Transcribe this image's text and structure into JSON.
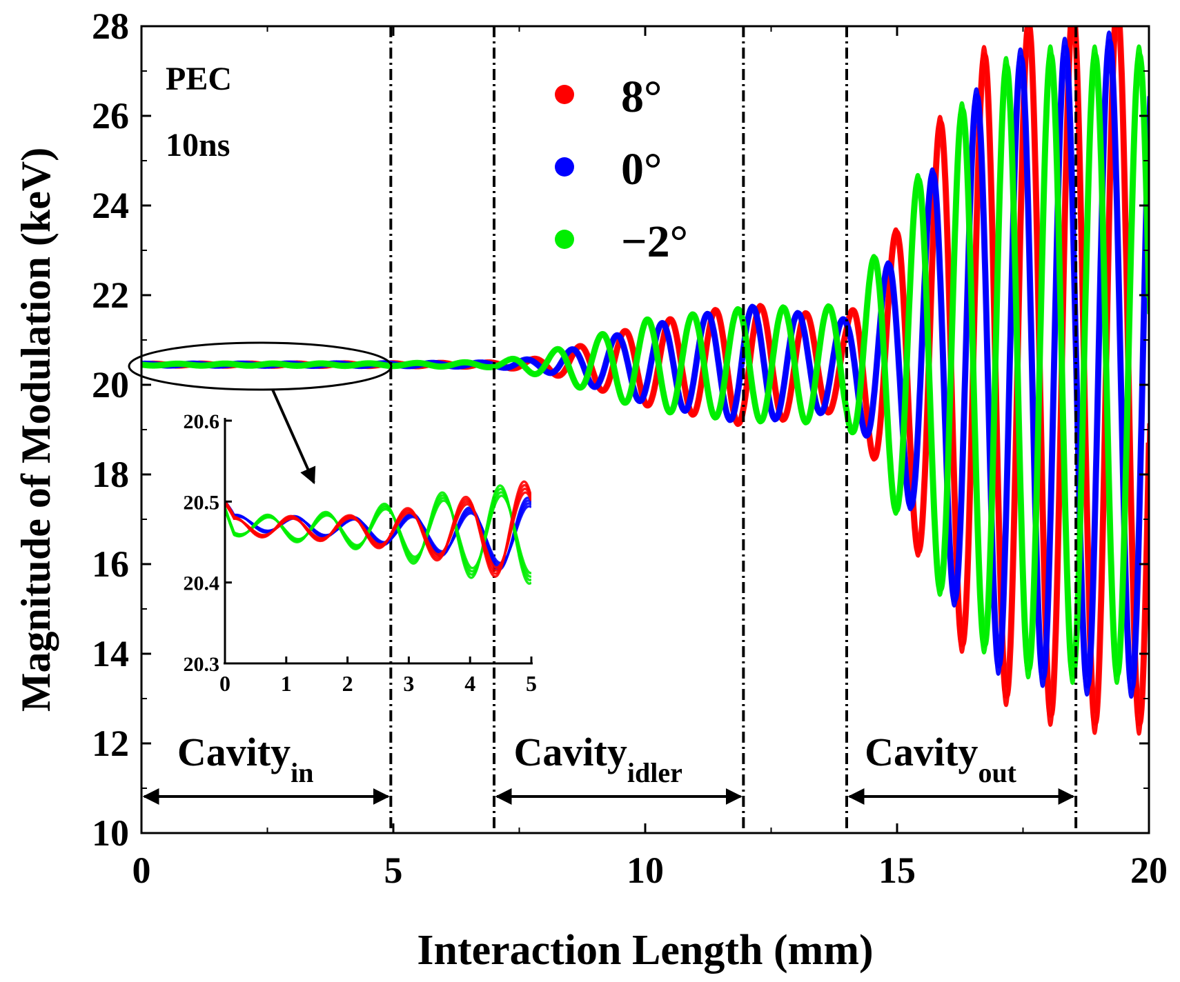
{
  "chart_data": {
    "type": "line",
    "title": "",
    "xlabel": "Interaction Length (mm)",
    "ylabel": "Magnitude of Modulation (keV)",
    "xlim": [
      0,
      20
    ],
    "ylim": [
      10,
      28
    ],
    "x_ticks": [
      "0",
      "5",
      "10",
      "15",
      "20"
    ],
    "y_ticks": [
      "10",
      "12",
      "14",
      "16",
      "18",
      "20",
      "22",
      "24",
      "26",
      "28"
    ],
    "grid": false,
    "legend_position": "top-center",
    "annotations": {
      "material": "PEC",
      "time": "10ns"
    },
    "series": [
      {
        "name": "8°",
        "color": "#ff0000",
        "wavelength_mm": [
          0.95,
          0.9,
          0.88
        ],
        "envelope_x": [
          0,
          5,
          7,
          8,
          10,
          12,
          14,
          15,
          16,
          17,
          18,
          19,
          20
        ],
        "envelope_amplitude_keV": [
          0.02,
          0.03,
          0.05,
          0.15,
          0.9,
          1.35,
          1.0,
          3.0,
          5.8,
          7.3,
          7.8,
          8.0,
          8.0
        ],
        "baseline_keV": 20.45
      },
      {
        "name": "0°",
        "color": "#0000ff",
        "wavelength_mm": [
          0.95,
          0.9,
          0.88
        ],
        "envelope_x": [
          0,
          5,
          7,
          8,
          10,
          12,
          14,
          15,
          16,
          17,
          18,
          19,
          20
        ],
        "envelope_amplitude_keV": [
          0.02,
          0.03,
          0.05,
          0.15,
          0.85,
          1.3,
          1.0,
          2.5,
          5.0,
          6.7,
          7.0,
          7.2,
          7.2
        ],
        "baseline_keV": 20.45
      },
      {
        "name": "−2°",
        "color": "#00ee00",
        "wavelength_mm": [
          0.95,
          0.9,
          0.88
        ],
        "envelope_x": [
          0,
          5,
          7,
          8,
          10,
          12,
          14,
          15,
          16,
          17,
          18,
          19,
          20
        ],
        "envelope_amplitude_keV": [
          0.02,
          0.03,
          0.06,
          0.25,
          1.0,
          1.25,
          1.3,
          3.3,
          5.3,
          6.6,
          6.9,
          6.9,
          6.9
        ],
        "baseline_keV": 20.45
      }
    ],
    "cavity_boundaries_mm": [
      4.95,
      7.0,
      11.95,
      14.0,
      18.55
    ],
    "regions": [
      {
        "name": "Cavity",
        "subscript": "in",
        "x_start": 0,
        "x_end": 4.95
      },
      {
        "name": "Cavity",
        "subscript": "idler",
        "x_start": 7.0,
        "x_end": 11.95
      },
      {
        "name": "Cavity",
        "subscript": "out",
        "x_start": 14.0,
        "x_end": 18.55
      }
    ],
    "inset": {
      "xlim": [
        0,
        5
      ],
      "ylim": [
        20.3,
        20.6
      ],
      "x_ticks": [
        "0",
        "1",
        "2",
        "3",
        "4",
        "5"
      ],
      "y_ticks": [
        "20.3",
        "20.4",
        "20.5",
        "20.6"
      ],
      "series_amplitude_keV": [
        {
          "name": "8°",
          "amp_x": [
            0,
            2,
            3,
            4,
            5
          ],
          "amp": [
            0.01,
            0.015,
            0.025,
            0.04,
            0.06
          ],
          "offset_x": [
            0,
            5
          ],
          "offset": [
            -0.03,
            -0.04
          ]
        },
        {
          "name": "0°",
          "amp_x": [
            0,
            2,
            3,
            4,
            5
          ],
          "amp": [
            0.008,
            0.012,
            0.02,
            0.03,
            0.045
          ],
          "offset_x": [
            0,
            5
          ],
          "offset": [
            -0.025,
            -0.045
          ]
        },
        {
          "name": "−2°",
          "amp_x": [
            0,
            2,
            3,
            4,
            5
          ],
          "amp": [
            0.01,
            0.02,
            0.035,
            0.05,
            0.055
          ],
          "offset_x": [
            0,
            5
          ],
          "offset": [
            -0.03,
            -0.04
          ]
        }
      ]
    }
  }
}
